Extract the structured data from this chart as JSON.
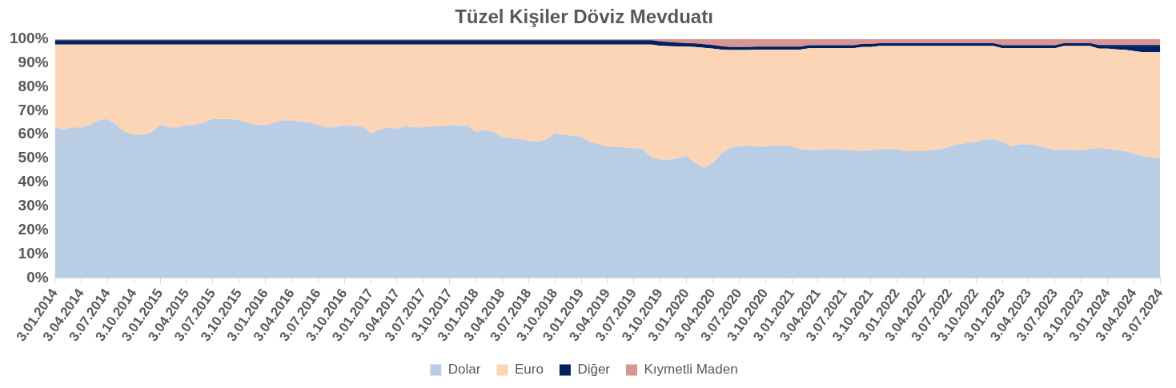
{
  "chart_data": {
    "type": "area",
    "title": "Tüzel Kişiler Döviz Mevduatı",
    "stacked": true,
    "legend": "bottom",
    "grid": false,
    "categories": [
      "3.01.2014",
      null,
      null,
      "3.04.2014",
      null,
      null,
      "3.07.2014",
      null,
      null,
      "3.10.2014",
      null,
      null,
      "3.01.2015",
      null,
      null,
      "3.04.2015",
      null,
      null,
      "3.07.2015",
      null,
      null,
      "3.10.2015",
      null,
      null,
      "3.01.2016",
      null,
      null,
      "3.04.2016",
      null,
      null,
      "3.07.2016",
      null,
      null,
      "3.10.2016",
      null,
      null,
      "3.01.2017",
      null,
      null,
      "3.04.2017",
      null,
      null,
      "3.07.2017",
      null,
      null,
      "3.10.2017",
      null,
      null,
      "3.01.2018",
      null,
      null,
      "3.04.2018",
      null,
      null,
      "3.07.2018",
      null,
      null,
      "3.10.2018",
      null,
      null,
      "3.01.2019",
      null,
      null,
      "3.04.2019",
      null,
      null,
      "3.07.2019",
      null,
      null,
      "3.10.2019",
      null,
      null,
      "3.01.2020",
      null,
      null,
      "3.04.2020",
      null,
      null,
      "3.07.2020",
      null,
      null,
      "3.10.2020",
      null,
      null,
      "3.01.2021",
      null,
      null,
      "3.04.2021",
      null,
      null,
      "3.07.2021",
      null,
      null,
      "3.10.2021",
      null,
      null,
      "3.01.2022",
      null,
      null,
      "3.04.2022",
      null,
      null,
      "3.07.2022",
      null,
      null,
      "3.10.2022",
      null,
      null,
      "3.01.2023",
      null,
      null,
      "3.04.2023",
      null,
      null,
      "3.07.2023",
      null,
      null,
      "3.10.2023",
      null,
      null,
      "3.01.2024",
      null,
      null,
      "3.04.2024",
      null,
      null,
      "3.07.2024"
    ],
    "ylim": [
      0,
      100
    ],
    "yticks": [
      {
        "value": 0,
        "label": "0%"
      },
      {
        "value": 10,
        "label": "10%"
      },
      {
        "value": 20,
        "label": "20%"
      },
      {
        "value": 30,
        "label": "30%"
      },
      {
        "value": 40,
        "label": "40%"
      },
      {
        "value": 50,
        "label": "50%"
      },
      {
        "value": 60,
        "label": "60%"
      },
      {
        "value": 70,
        "label": "70%"
      },
      {
        "value": 80,
        "label": "80%"
      },
      {
        "value": 90,
        "label": "90%"
      },
      {
        "value": 100,
        "label": "100%"
      }
    ],
    "series": [
      {
        "name": "Dolar",
        "color": "#b9cde4",
        "values": [
          63,
          62,
          63,
          63,
          64,
          66,
          66.5,
          64,
          61,
          60,
          60,
          61,
          64,
          63,
          63,
          64,
          64,
          65,
          66.5,
          66.5,
          66.5,
          66,
          65,
          64,
          64,
          65,
          66,
          66,
          65.5,
          65,
          64,
          63,
          63,
          64,
          63.5,
          63.5,
          60.5,
          62,
          63,
          62.5,
          63.5,
          63,
          63,
          63.5,
          63.5,
          64,
          63.5,
          64,
          61,
          62,
          61,
          59,
          58.5,
          58,
          57.5,
          57,
          58,
          60.5,
          60,
          59.5,
          59,
          57,
          56,
          55,
          55,
          54.5,
          54.5,
          54,
          50.5,
          49.5,
          49.5,
          50,
          51,
          48,
          46,
          48,
          52,
          54.5,
          55,
          55.5,
          55,
          55,
          55.5,
          55.5,
          55,
          54,
          53.5,
          53.5,
          54,
          54,
          53.5,
          53.5,
          53,
          53.5,
          54,
          54,
          54,
          53,
          53,
          53,
          53.5,
          54,
          55,
          56,
          56.5,
          57,
          58,
          58,
          57,
          55,
          56,
          56,
          55.5,
          54.5,
          53.5,
          54,
          53.5,
          53.5,
          54,
          54.5,
          54,
          53.5,
          53,
          52,
          51,
          50.5,
          50
        ]
      },
      {
        "name": "Euro",
        "color": "#fbd5b5",
        "values": [
          34.7,
          35.7,
          34.7,
          34.7,
          33.7,
          31.7,
          31.2,
          33.7,
          36.7,
          37.7,
          37.7,
          36.7,
          33.7,
          34.7,
          34.7,
          33.7,
          33.7,
          32.7,
          31.2,
          31.2,
          31.2,
          31.7,
          32.7,
          33.7,
          33.7,
          32.7,
          31.7,
          31.7,
          32.2,
          32.7,
          33.7,
          34.7,
          34.7,
          33.7,
          34.2,
          34.2,
          37.2,
          35.7,
          34.7,
          35.2,
          34.2,
          34.7,
          34.7,
          34.2,
          34.2,
          33.7,
          34.2,
          33.7,
          36.7,
          35.7,
          36.7,
          38.7,
          39.2,
          39.7,
          40.2,
          40.7,
          39.7,
          37.2,
          37.7,
          38.2,
          38.7,
          40.7,
          41.7,
          42.7,
          42.7,
          43.2,
          43.2,
          43.7,
          47.2,
          47.7,
          47.5,
          46.9,
          45.8,
          48.7,
          50.3,
          48,
          43.6,
          40.9,
          40.4,
          39.9,
          40.6,
          40.6,
          40.1,
          40.1,
          40.6,
          41.6,
          42.7,
          42.7,
          42.2,
          42.2,
          42.7,
          42.7,
          43.7,
          43.2,
          43.1,
          43.1,
          43.1,
          44.1,
          44.1,
          44.1,
          43.6,
          43.1,
          42.1,
          41.1,
          40.6,
          40.1,
          39.1,
          39.1,
          39.2,
          41.2,
          40.2,
          40.2,
          40.7,
          41.7,
          42.7,
          43.1,
          43.6,
          43.6,
          43.1,
          41.5,
          42,
          42.2,
          42.5,
          43,
          43.5,
          44,
          44.5
        ]
      },
      {
        "name": "Diğer",
        "color": "#002060",
        "values": [
          1.8,
          1.8,
          1.8,
          1.8,
          1.8,
          1.8,
          1.8,
          1.8,
          1.8,
          1.8,
          1.8,
          1.8,
          1.8,
          1.8,
          1.8,
          1.8,
          1.8,
          1.8,
          1.8,
          1.8,
          1.8,
          1.8,
          1.8,
          1.8,
          1.8,
          1.8,
          1.8,
          1.8,
          1.8,
          1.8,
          1.8,
          1.8,
          1.8,
          1.8,
          1.8,
          1.8,
          1.8,
          1.8,
          1.8,
          1.8,
          1.8,
          1.8,
          1.8,
          1.8,
          1.8,
          1.8,
          1.8,
          1.8,
          1.8,
          1.8,
          1.8,
          1.8,
          1.8,
          1.8,
          1.8,
          1.8,
          1.8,
          1.8,
          1.8,
          1.8,
          1.8,
          1.8,
          1.8,
          1.8,
          1.8,
          1.8,
          1.8,
          1.8,
          1.8,
          1.8,
          1.8,
          1.6,
          1.5,
          1.5,
          1.5,
          1.5,
          1.4,
          1.3,
          1.3,
          1.3,
          1.2,
          1.2,
          1.2,
          1.2,
          1.2,
          1.2,
          1.2,
          1.2,
          1.2,
          1.2,
          1.2,
          1.2,
          1.2,
          1.2,
          1.2,
          1.2,
          1.2,
          1.2,
          1.2,
          1.2,
          1.2,
          1.2,
          1.2,
          1.2,
          1.2,
          1.2,
          1.2,
          1.2,
          1.2,
          1.2,
          1.2,
          1.2,
          1.2,
          1.2,
          1.2,
          1.2,
          1.2,
          1.2,
          1.2,
          1.5,
          1.5,
          1.8,
          2,
          2.5,
          3,
          3,
          3
        ]
      },
      {
        "name": "Kıymetli Maden",
        "color": "#d99594",
        "values": [
          0.5,
          0.5,
          0.5,
          0.5,
          0.5,
          0.5,
          0.5,
          0.5,
          0.5,
          0.5,
          0.5,
          0.5,
          0.5,
          0.5,
          0.5,
          0.5,
          0.5,
          0.5,
          0.5,
          0.5,
          0.5,
          0.5,
          0.5,
          0.5,
          0.5,
          0.5,
          0.5,
          0.5,
          0.5,
          0.5,
          0.5,
          0.5,
          0.5,
          0.5,
          0.5,
          0.5,
          0.5,
          0.5,
          0.5,
          0.5,
          0.5,
          0.5,
          0.5,
          0.5,
          0.5,
          0.5,
          0.5,
          0.5,
          0.5,
          0.5,
          0.5,
          0.5,
          0.5,
          0.5,
          0.5,
          0.5,
          0.5,
          0.5,
          0.5,
          0.5,
          0.5,
          0.5,
          0.5,
          0.5,
          0.5,
          0.5,
          0.5,
          0.5,
          0.5,
          1,
          1.2,
          1.5,
          1.7,
          1.8,
          2.2,
          2.5,
          3,
          3.3,
          3.3,
          3.3,
          3.2,
          3.2,
          3.2,
          3.2,
          3.2,
          3.2,
          2.6,
          2.6,
          2.6,
          2.6,
          2.6,
          2.6,
          2.1,
          2.1,
          1.7,
          1.7,
          1.7,
          1.7,
          1.7,
          1.7,
          1.7,
          1.7,
          1.7,
          1.7,
          1.7,
          1.7,
          1.7,
          1.7,
          2.6,
          2.6,
          2.6,
          2.6,
          2.6,
          2.6,
          2.6,
          1.7,
          1.7,
          1.7,
          1.7,
          2.5,
          2.5,
          2.5,
          2.5,
          2.5,
          2.5,
          2.5,
          2.5
        ]
      }
    ]
  }
}
